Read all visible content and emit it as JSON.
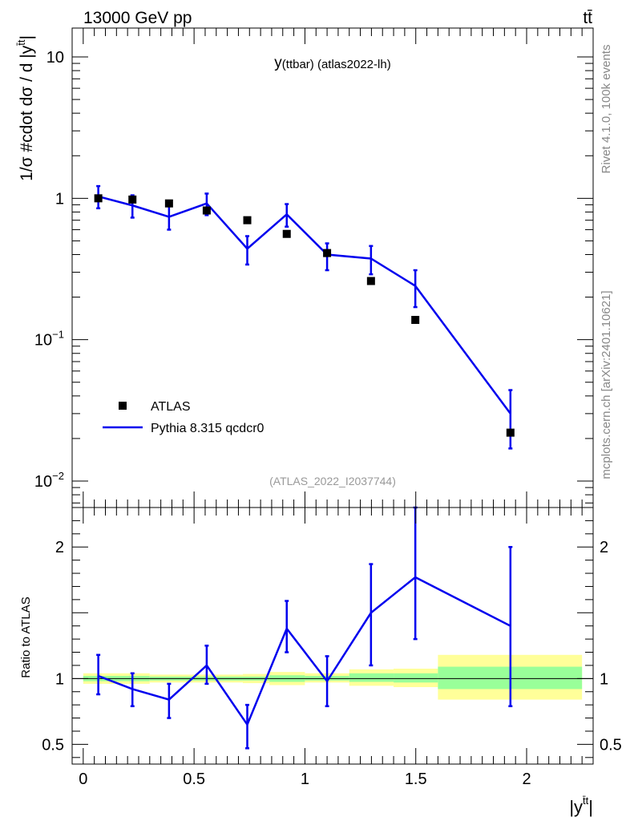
{
  "header": {
    "process_label": "13000 GeV pp",
    "final_state_label": "tt̄"
  },
  "side_labels": {
    "rivet": "Rivet 4.1.0,  100k events",
    "mcplots": "mcplots.cern.ch [arXiv:2401.10621]"
  },
  "colors": {
    "data": "#000000",
    "mc": "#0000ee",
    "band_inner": "#99ff99",
    "band_outer": "#ffff99"
  },
  "chart_data": [
    {
      "type": "line",
      "title": "y(ttbar) (atlas2022-lh)",
      "title_parts": {
        "main": "y",
        "sub": "(ttbar) (atlas2022-lh)"
      },
      "watermark": "(ATLAS_2022_I2037744)",
      "ylabel": "1/σ #cdot dσ / d |y^{t̄t}|",
      "ylabel_parts": {
        "main": "1/σ #cdot dσ / d |y",
        "sup": "t̄t",
        "end": "|"
      },
      "yscale": "log",
      "ylim": [
        0.0065,
        16
      ],
      "xlim": [
        -0.05,
        2.3
      ],
      "yticks": [
        {
          "value": 10,
          "label": "10",
          "sup": ""
        },
        {
          "value": 1,
          "label": "1",
          "sup": ""
        },
        {
          "value": 0.1,
          "label": "10",
          "sup": "−1"
        },
        {
          "value": 0.01,
          "label": "10",
          "sup": "−2"
        }
      ],
      "legend_position": "lower-left",
      "series": [
        {
          "name": "ATLAS",
          "kind": "data",
          "x": [
            0.068,
            0.222,
            0.387,
            0.557,
            0.74,
            0.918,
            1.1,
            1.298,
            1.498,
            1.927
          ],
          "y": [
            1.0,
            0.98,
            0.92,
            0.82,
            0.7,
            0.56,
            0.41,
            0.26,
            0.138,
            0.022
          ]
        },
        {
          "name": "Pythia 8.315 qcdcr0",
          "kind": "mc",
          "x": [
            0.068,
            0.222,
            0.387,
            0.557,
            0.74,
            0.918,
            1.1,
            1.298,
            1.498,
            1.927
          ],
          "y": [
            1.03,
            0.89,
            0.74,
            0.92,
            0.44,
            0.77,
            0.4,
            0.375,
            0.24,
            0.03
          ],
          "err_lo": [
            0.85,
            0.73,
            0.6,
            0.76,
            0.34,
            0.63,
            0.31,
            0.29,
            0.17,
            0.017
          ],
          "err_hi": [
            1.22,
            1.05,
            0.88,
            1.08,
            0.54,
            0.91,
            0.48,
            0.46,
            0.31,
            0.044
          ]
        }
      ]
    },
    {
      "type": "line",
      "ylabel": "Ratio to ATLAS",
      "xlabel": "|y^{t̄t}|",
      "xlabel_parts": {
        "main": "|y",
        "sup": "t̄t",
        "end": "|"
      },
      "ylim": [
        0.35,
        2.3
      ],
      "xlim": [
        -0.05,
        2.3
      ],
      "xticks": [
        {
          "value": 0,
          "label": "0"
        },
        {
          "value": 0.5,
          "label": "0.5"
        },
        {
          "value": 1,
          "label": "1"
        },
        {
          "value": 1.5,
          "label": "1.5"
        },
        {
          "value": 2,
          "label": "2"
        }
      ],
      "yticks": [
        {
          "value": 2,
          "label": "2"
        },
        {
          "value": 1,
          "label": "1"
        },
        {
          "value": 0.5,
          "label": "0.5"
        }
      ],
      "reference_line": 1,
      "bands": [
        {
          "x0": 0.0,
          "x1": 0.3,
          "inner": [
            0.98,
            1.02
          ],
          "outer": [
            0.96,
            1.04
          ]
        },
        {
          "x0": 0.3,
          "x1": 0.42,
          "inner": [
            0.985,
            1.015
          ],
          "outer": [
            0.97,
            1.03
          ]
        },
        {
          "x0": 0.42,
          "x1": 0.72,
          "inner": [
            0.985,
            1.015
          ],
          "outer": [
            0.97,
            1.03
          ]
        },
        {
          "x0": 0.72,
          "x1": 0.84,
          "inner": [
            0.985,
            1.015
          ],
          "outer": [
            0.965,
            1.035
          ]
        },
        {
          "x0": 0.84,
          "x1": 1.0,
          "inner": [
            0.975,
            1.025
          ],
          "outer": [
            0.95,
            1.05
          ]
        },
        {
          "x0": 1.0,
          "x1": 1.2,
          "inner": [
            0.985,
            1.02
          ],
          "outer": [
            0.97,
            1.04
          ]
        },
        {
          "x0": 1.2,
          "x1": 1.4,
          "inner": [
            0.975,
            1.04
          ],
          "outer": [
            0.945,
            1.07
          ]
        },
        {
          "x0": 1.4,
          "x1": 1.6,
          "inner": [
            0.97,
            1.04
          ],
          "outer": [
            0.935,
            1.075
          ]
        },
        {
          "x0": 1.6,
          "x1": 2.25,
          "inner": [
            0.92,
            1.09
          ],
          "outer": [
            0.84,
            1.18
          ]
        }
      ],
      "series": [
        {
          "name": "Pythia 8.315 qcdcr0",
          "kind": "mc",
          "x": [
            0.068,
            0.222,
            0.387,
            0.557,
            0.74,
            0.918,
            1.1,
            1.298,
            1.498,
            1.927
          ],
          "y": [
            1.02,
            0.92,
            0.84,
            1.1,
            0.65,
            1.38,
            0.98,
            1.5,
            1.77,
            1.4
          ],
          "err_lo": [
            0.88,
            0.79,
            0.7,
            0.96,
            0.47,
            1.2,
            0.79,
            1.1,
            1.3,
            0.79
          ],
          "err_hi": [
            1.18,
            1.04,
            0.96,
            1.25,
            0.8,
            1.59,
            1.17,
            1.87,
            2.3,
            2.0
          ]
        }
      ]
    }
  ]
}
